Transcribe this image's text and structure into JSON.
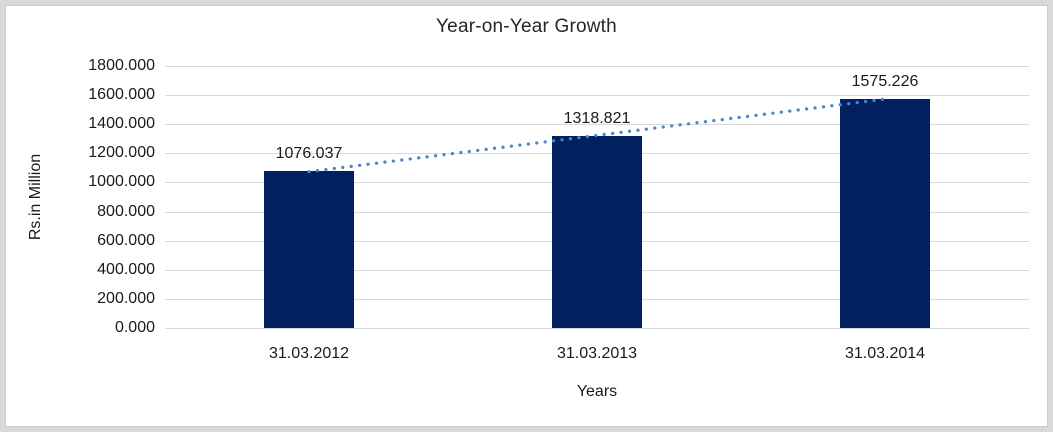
{
  "chart_data": {
    "type": "bar",
    "title": "Year-on-Year Growth",
    "categories": [
      "31.03.2012",
      "31.03.2013",
      "31.03.2014"
    ],
    "values": [
      1076.037,
      1318.821,
      1575.226
    ],
    "data_labels": [
      "1076.037",
      "1318.821",
      "1575.226"
    ],
    "xlabel": "Years",
    "ylabel": "Rs.in Million",
    "ylim": [
      0,
      1800
    ],
    "ytick_step": 200,
    "ytick_labels": [
      "0.000",
      "200.000",
      "400.000",
      "600.000",
      "800.000",
      "1000.000",
      "1200.000",
      "1400.000",
      "1600.000",
      "1800.000"
    ],
    "grid": true,
    "legend": "none",
    "trendline": {
      "type": "linear",
      "style": "dotted",
      "series": "values"
    }
  },
  "colors": {
    "bar_fill": "#002060",
    "trendline": "#4a86c8",
    "gridline": "#d9d9d9",
    "text": "#1a1a1a",
    "title_text": "#262626",
    "frame_border": "#d9d9d9",
    "background": "#ffffff"
  }
}
